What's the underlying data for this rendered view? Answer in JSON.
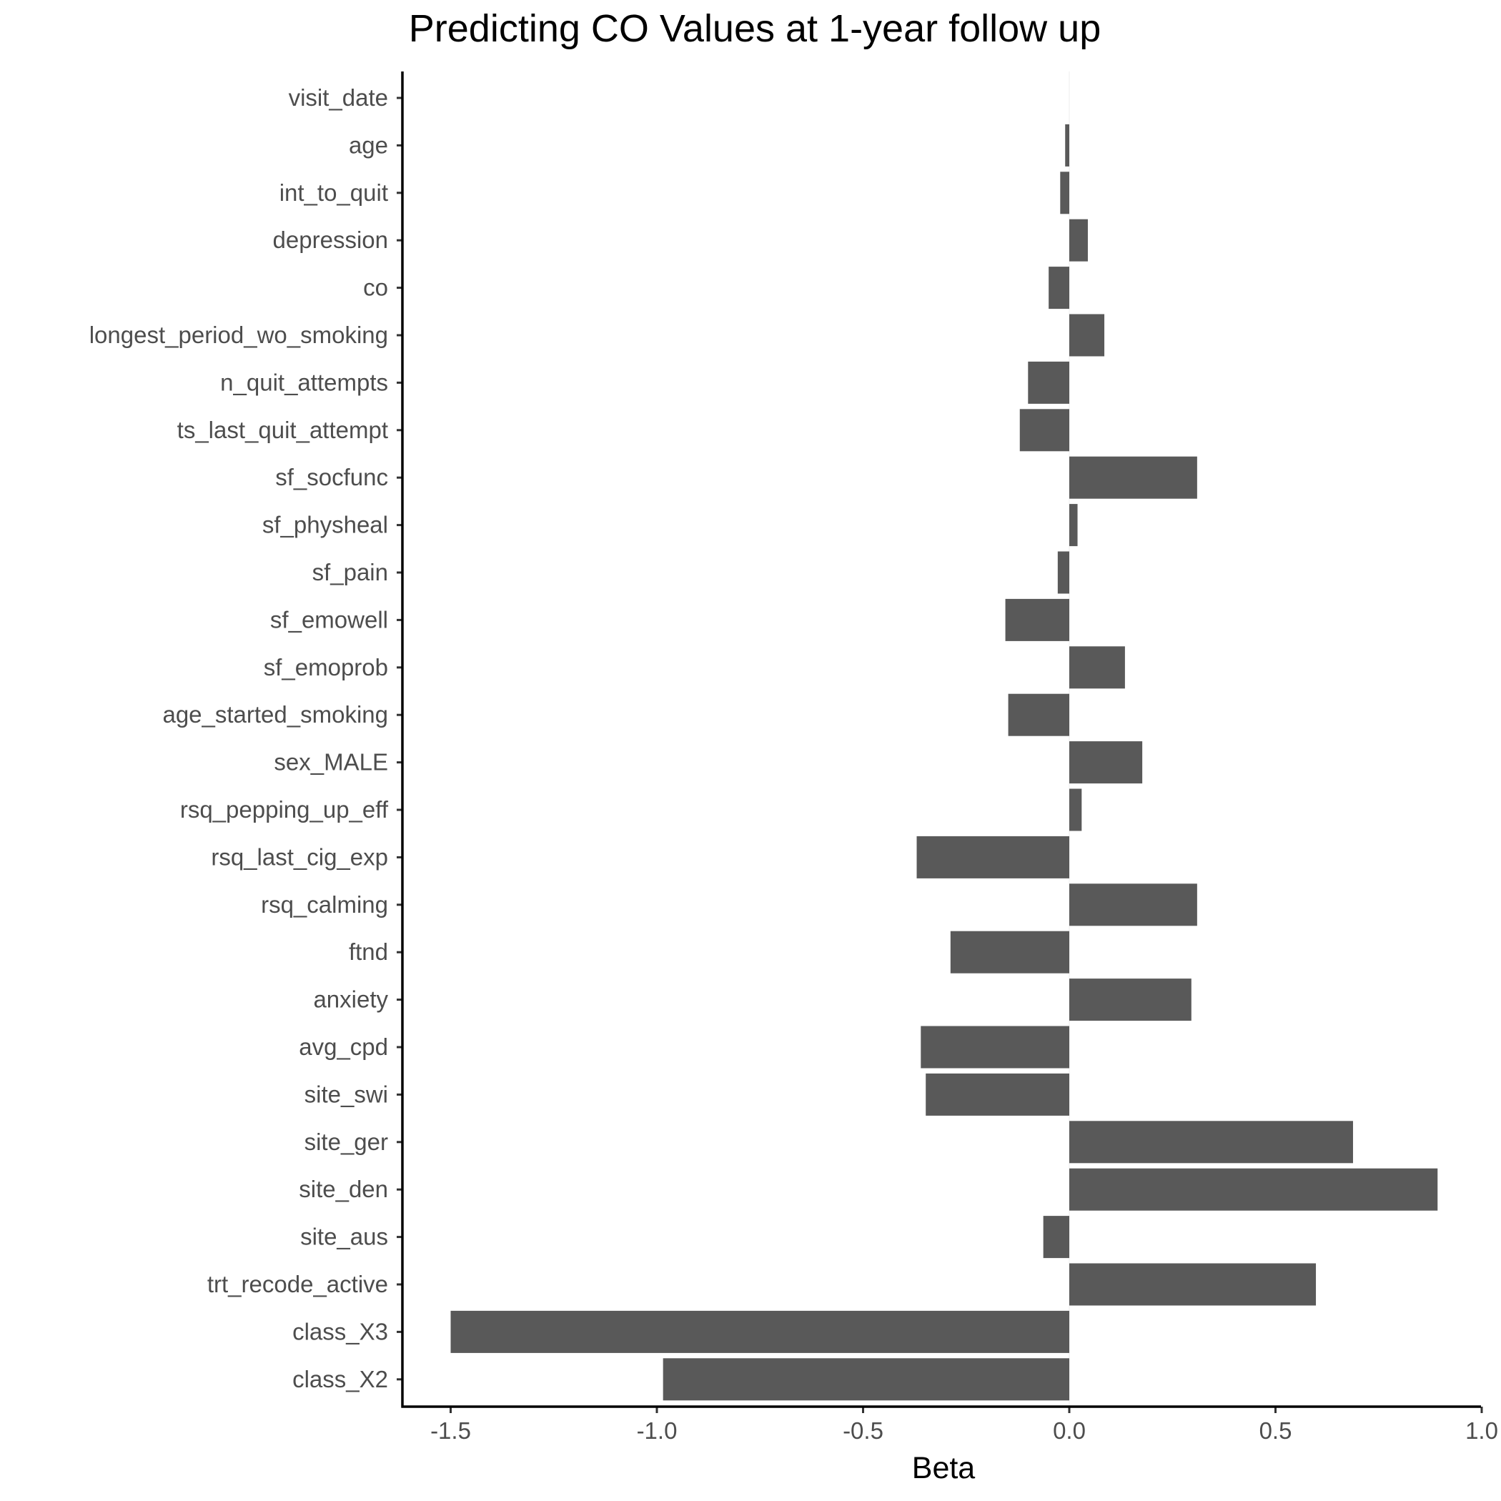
{
  "chart_data": {
    "type": "bar",
    "orientation": "horizontal",
    "title": "Predicting CO Values at 1-year follow up",
    "xlabel": "Beta",
    "ylabel": "",
    "xlim": [
      -1.62,
      1.0
    ],
    "xticks": [
      -1.5,
      -1.0,
      -0.5,
      0.0,
      0.5,
      1.0
    ],
    "xtick_labels": [
      "-1.5",
      "-1.0",
      "-0.5",
      "0.0",
      "0.5",
      "1.0"
    ],
    "grid": false,
    "bar_color": "#595959",
    "categories": [
      "visit_date",
      "age",
      "int_to_quit",
      "depression",
      "co",
      "longest_period_wo_smoking",
      "n_quit_attempts",
      "ts_last_quit_attempt",
      "sf_socfunc",
      "sf_physheal",
      "sf_pain",
      "sf_emowell",
      "sf_emoprob",
      "age_started_smoking",
      "sex_MALE",
      "rsq_pepping_up_eff",
      "rsq_last_cig_exp",
      "rsq_calming",
      "ftnd",
      "anxiety",
      "avg_cpd",
      "site_swi",
      "site_ger",
      "site_den",
      "site_aus",
      "trt_recode_active",
      "class_X3",
      "class_X2"
    ],
    "values": [
      0.0,
      -0.01,
      -0.022,
      0.045,
      -0.05,
      0.085,
      -0.1,
      -0.12,
      0.31,
      0.02,
      -0.028,
      -0.155,
      0.135,
      -0.148,
      0.177,
      0.03,
      -0.37,
      0.31,
      -0.288,
      0.296,
      -0.36,
      -0.348,
      0.688,
      0.893,
      -0.063,
      0.598,
      -1.5,
      -0.985
    ]
  }
}
